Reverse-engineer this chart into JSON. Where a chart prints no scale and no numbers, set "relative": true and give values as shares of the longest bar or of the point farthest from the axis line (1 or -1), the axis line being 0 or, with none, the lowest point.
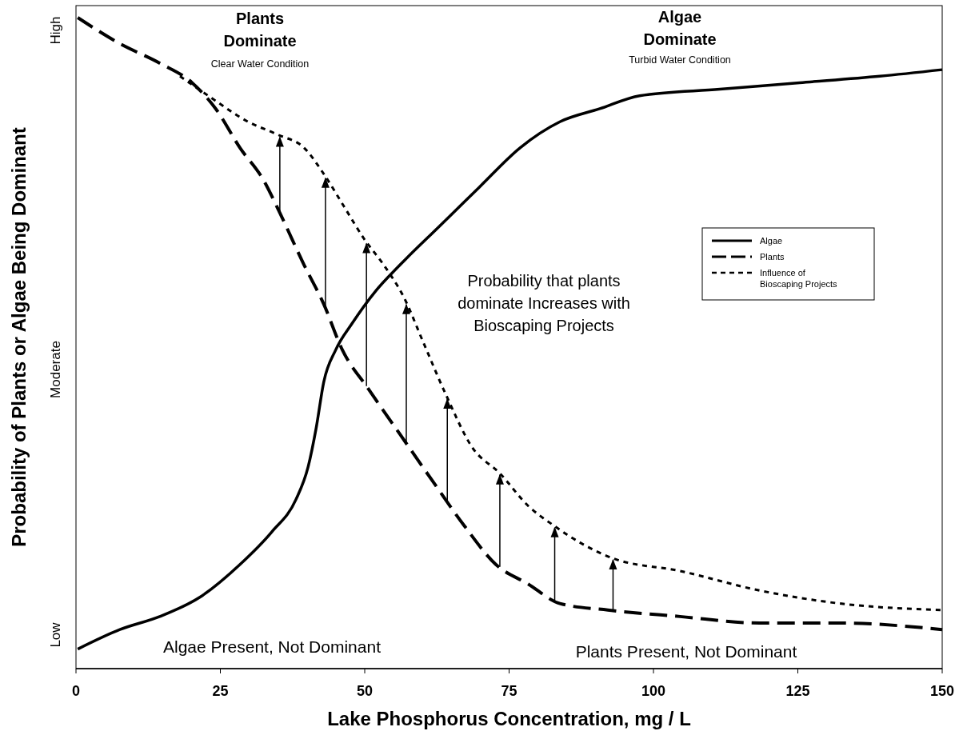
{
  "chart_data": {
    "type": "line",
    "xlabel": "Lake Phosphorus Concentration, mg / L",
    "ylabel": "Probability of Plants or Algae Being Dominant",
    "xlim": [
      0,
      150
    ],
    "xticks": [
      0,
      25,
      50,
      75,
      100,
      125,
      150
    ],
    "relative": true,
    "legend": "right",
    "series": [
      {
        "name": "Algae",
        "color": "#000000",
        "line_style": "solid",
        "x": [
          0.3,
          7.6,
          14.5,
          21.5,
          28.4,
          33.9,
          38.1,
          40.2,
          41.6,
          42.9,
          45.0,
          47.8,
          51.9,
          56.1,
          63.0,
          69.9,
          76.9,
          83.8,
          90.7,
          97.6,
          111.5,
          125.3,
          139.2,
          150
        ],
        "values": [
          0.03,
          0.06,
          0.08,
          0.11,
          0.16,
          0.21,
          0.26,
          0.31,
          0.37,
          0.44,
          0.49,
          0.53,
          0.58,
          0.62,
          0.68,
          0.74,
          0.8,
          0.84,
          0.86,
          0.88,
          0.89,
          0.9,
          0.91,
          0.92
        ]
      },
      {
        "name": "Plants",
        "color": "#000000",
        "line_style": "dashed",
        "x": [
          0.3,
          7.6,
          14.5,
          20.1,
          24.2,
          28.4,
          32.5,
          35.3,
          39.5,
          42.9,
          46.1,
          50.6,
          56.1,
          61.6,
          67.2,
          72.7,
          78.3,
          83.8,
          92.1,
          104.6,
          118.4,
          132.3,
          150
        ],
        "values": [
          1.0,
          0.96,
          0.93,
          0.9,
          0.86,
          0.8,
          0.75,
          0.7,
          0.62,
          0.56,
          0.49,
          0.43,
          0.36,
          0.29,
          0.22,
          0.16,
          0.13,
          0.1,
          0.09,
          0.08,
          0.07,
          0.07,
          0.06
        ]
      },
      {
        "name": "Influence of Bioscaping Projects",
        "color": "#000000",
        "line_style": "dotted",
        "x": [
          18.0,
          22.9,
          29.8,
          35.0,
          39.5,
          42.9,
          46.4,
          49.9,
          53.3,
          56.8,
          60.2,
          64.1,
          68.6,
          73.4,
          78.3,
          82.7,
          88.0,
          92.8,
          104.6,
          118.4,
          132.3,
          150
        ],
        "values": [
          0.91,
          0.88,
          0.84,
          0.82,
          0.8,
          0.76,
          0.71,
          0.66,
          0.62,
          0.57,
          0.5,
          0.42,
          0.34,
          0.3,
          0.25,
          0.22,
          0.19,
          0.17,
          0.15,
          0.12,
          0.1,
          0.09
        ]
      }
    ],
    "annotations": [
      "Plants Dominate",
      "Clear Water Condition",
      "Algae Dominate",
      "Turbid Water Condition",
      "Probability that plants dominate Increases with Bioscaping Projects",
      "Algae Present, Not Dominant",
      "Plants Present, Not Dominant",
      "Low",
      "Moderate",
      "High"
    ]
  }
}
